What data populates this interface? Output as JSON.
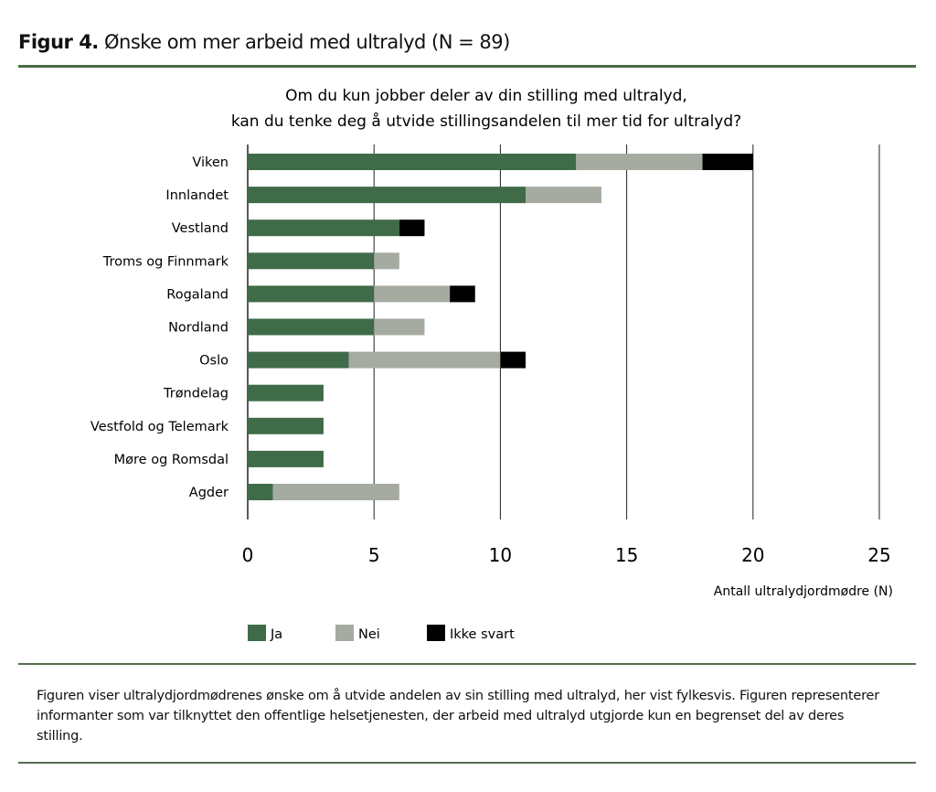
{
  "figure": {
    "label": "Figur 4.",
    "title": "Ønske om mer arbeid med ultralyd (N = 89)",
    "caption": "Figuren viser ultralydjordmødrenes ønske om å utvide andelen av sin stilling med ultralyd, her vist fylkesvis. Figuren representerer informanter som var tilknyttet den offentlige helsetjenesten, der arbeid med ultralyd utgjorde kun en begrenset del av deres stilling."
  },
  "chart_data": {
    "type": "bar",
    "orientation": "horizontal",
    "stacked": true,
    "title_lines": [
      "Om du kun jobber deler av din stilling med ultralyd,",
      "kan du tenke deg å utvide stillingsandelen til mer tid for ultralyd?"
    ],
    "categories": [
      "Viken",
      "Innlandet",
      "Vestland",
      "Troms og Finnmark",
      "Rogaland",
      "Nordland",
      "Oslo",
      "Trøndelag",
      "Vestfold og Telemark",
      "Møre og Romsdal",
      "Agder"
    ],
    "series": [
      {
        "name": "Ja",
        "color": "#3f6b48",
        "values": [
          13,
          11,
          6,
          5,
          5,
          5,
          4,
          3,
          3,
          3,
          1
        ]
      },
      {
        "name": "Nei",
        "color": "#a6aba1",
        "values": [
          5,
          3,
          0,
          1,
          3,
          2,
          6,
          0,
          0,
          0,
          5
        ]
      },
      {
        "name": "Ikke svart",
        "color": "#000000",
        "values": [
          2,
          0,
          1,
          0,
          1,
          0,
          1,
          0,
          0,
          0,
          0
        ]
      }
    ],
    "xlabel": "Antall ultralydjordmødre (N)",
    "xlim": [
      0,
      25
    ],
    "xticks": [
      "0",
      "5",
      "10",
      "15",
      "20",
      "25"
    ],
    "grid": "vertical",
    "legend_position": "bottom"
  }
}
